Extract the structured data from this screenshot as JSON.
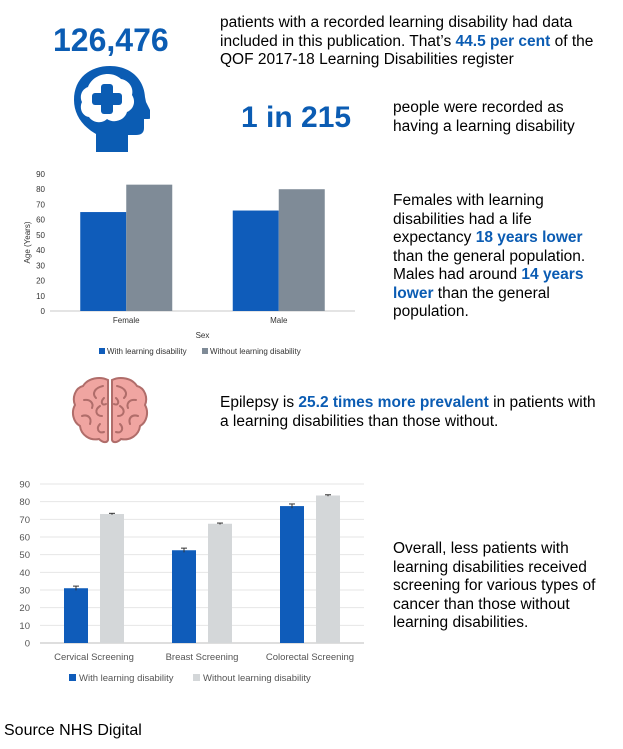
{
  "header": {
    "count": "126,476",
    "count_text_1": "patients with a recorded learning disability had data included in this publication.  That’s ",
    "count_highlight": "44.5 per cent",
    "count_text_2": " of the QOF 2017-18 Learning Disabilities register",
    "ratio": "1 in 215",
    "ratio_text": "people were recorded as having a learning disability"
  },
  "life_expectancy": {
    "text_1": "Females with learning disabilities had a life expectancy ",
    "highlight_1": "18 years lower",
    "text_2": " than the general population. Males had around ",
    "highlight_2": "14 years lower",
    "text_3": " than the general population."
  },
  "epilepsy": {
    "text_1": "Epilepsy is ",
    "highlight": "25.2 times more prevalent",
    "text_2": " in patients with a learning disabilities than those without."
  },
  "screening": {
    "text": "Overall, less patients with learning disabilities received screening for various types of cancer than those without learning disabilities."
  },
  "footer": {
    "source": "Source NHS Digital"
  },
  "colors": {
    "accent": "#0b5cb3",
    "series_a": "#0f5cba",
    "series_b_chart1": "#7f8b97",
    "series_b_chart2": "#d4d7d9",
    "brain": "#f0a5a1"
  },
  "chart_data": [
    {
      "type": "bar",
      "title": "",
      "xlabel": "Sex",
      "ylabel": "Age (Years)",
      "ylim": [
        0,
        90
      ],
      "yticks": [
        0,
        10,
        20,
        30,
        40,
        50,
        60,
        70,
        80,
        90
      ],
      "categories": [
        "Female",
        "Male"
      ],
      "series": [
        {
          "name": "With learning disability",
          "values": [
            65,
            66
          ]
        },
        {
          "name": "Without learning disability",
          "values": [
            83,
            80
          ]
        }
      ],
      "legend": "bottom"
    },
    {
      "type": "bar",
      "title": "",
      "xlabel": "",
      "ylabel": "",
      "ylim": [
        0,
        90
      ],
      "yticks": [
        0,
        10,
        20,
        30,
        40,
        50,
        60,
        70,
        80,
        90
      ],
      "grid": true,
      "categories": [
        "Cervical Screening",
        "Breast Screening",
        "Colorectal Screening"
      ],
      "series": [
        {
          "name": "With learning disability",
          "values": [
            31,
            52.5,
            77.5
          ]
        },
        {
          "name": "Without learning disability",
          "values": [
            73,
            67.5,
            83.5
          ]
        }
      ],
      "legend": "bottom"
    }
  ]
}
